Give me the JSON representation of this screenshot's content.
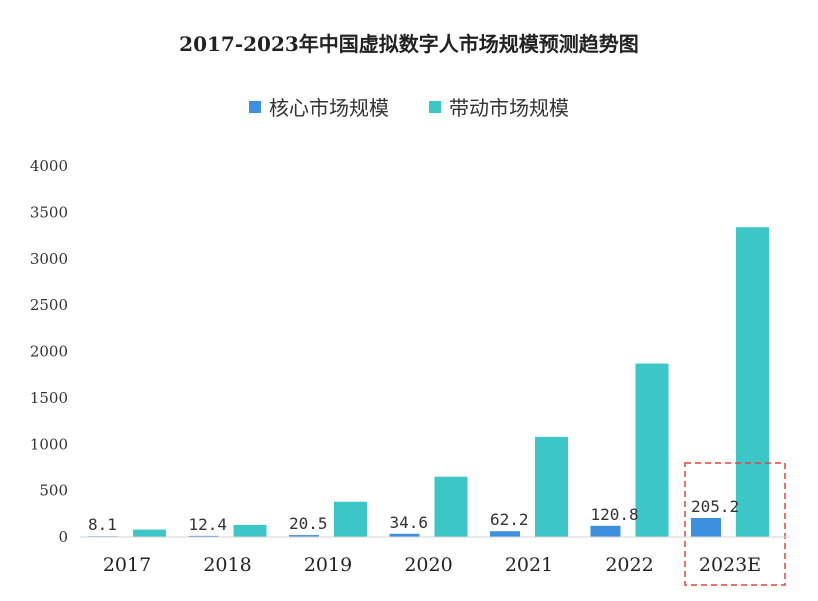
{
  "chart_data": {
    "type": "bar",
    "title": "2017-2023年中国虚拟数字人市场规模预测趋势图",
    "categories": [
      "2017",
      "2018",
      "2019",
      "2020",
      "2021",
      "2022",
      "2023E"
    ],
    "series": [
      {
        "name": "核心市场规模",
        "values": [
          8.1,
          12.4,
          20.5,
          34.6,
          62.2,
          120.8,
          205.2
        ],
        "color": "#3d8fe0"
      },
      {
        "name": "带动市场规模",
        "values": [
          80,
          130,
          380,
          650,
          1080,
          1870,
          3340
        ],
        "color": "#3cc6c8"
      }
    ],
    "data_labels": [
      "8.1",
      "12.4",
      "20.5",
      "34.6",
      "62.2",
      "120.8",
      "205.2"
    ],
    "y_ticks": [
      "0",
      "500",
      "1000",
      "1500",
      "2000",
      "2500",
      "3000",
      "3500",
      "4000"
    ],
    "ylim": [
      0,
      4000
    ],
    "grid": false,
    "legend_position": "top-center",
    "highlight_category": "2023E",
    "highlight_color": "#e0453a",
    "xlabel": "",
    "ylabel": ""
  }
}
